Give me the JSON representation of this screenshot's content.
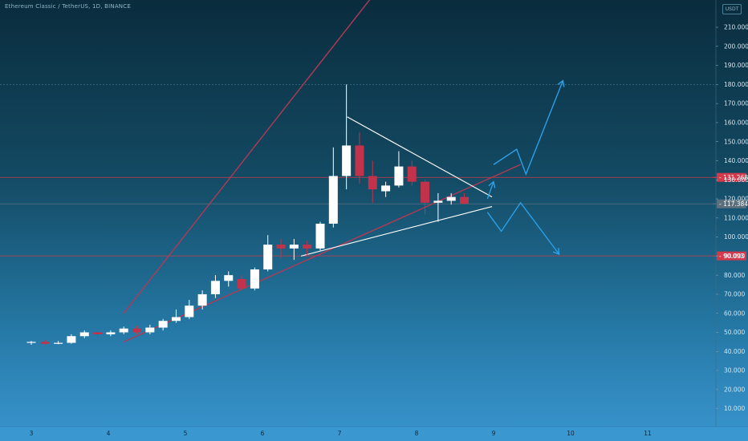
{
  "header": {
    "title": "Ethereum Classic / TetherUS, 1D, BINANCE",
    "badge": "USDT"
  },
  "chart_data": {
    "type": "candlestick",
    "y_axis": {
      "min": 0,
      "max": 220,
      "ticks": [
        10,
        20,
        30,
        40,
        50,
        60,
        70,
        80,
        90,
        100,
        110,
        120,
        130,
        140,
        150,
        160,
        170,
        180,
        190,
        200,
        210
      ],
      "tick_labels": [
        "10.000",
        "20.000",
        "30.000",
        "40.000",
        "50.000",
        "60.000",
        "70.000",
        "80.000",
        "90.000",
        "100.000",
        "110.000",
        "120.000",
        "130.000",
        "140.000",
        "150.000",
        "160.000",
        "170.000",
        "180.000",
        "190.000",
        "200.000",
        "210.000"
      ]
    },
    "x_axis": {
      "ticks": [
        3,
        4,
        5,
        6,
        7,
        8,
        9,
        10,
        11
      ],
      "tick_labels": [
        "3",
        "4",
        "5",
        "6",
        "7",
        "8",
        "9",
        "10",
        "11"
      ]
    },
    "candles": [
      {
        "x": 3.0,
        "open": 44.5,
        "high": 45.5,
        "low": 43.5,
        "close": 45.0
      },
      {
        "x": 3.18,
        "open": 45.0,
        "high": 46.0,
        "low": 43.5,
        "close": 44.0
      },
      {
        "x": 3.35,
        "open": 44.0,
        "high": 45.5,
        "low": 43.8,
        "close": 44.5
      },
      {
        "x": 3.52,
        "open": 44.5,
        "high": 49.0,
        "low": 44.0,
        "close": 48.0
      },
      {
        "x": 3.69,
        "open": 48.0,
        "high": 51.0,
        "low": 47.0,
        "close": 50.0
      },
      {
        "x": 3.86,
        "open": 50.0,
        "high": 50.5,
        "low": 47.0,
        "close": 49.0
      },
      {
        "x": 4.03,
        "open": 49.0,
        "high": 51.0,
        "low": 48.0,
        "close": 50.0
      },
      {
        "x": 4.2,
        "open": 50.0,
        "high": 53.0,
        "low": 49.0,
        "close": 52.0
      },
      {
        "x": 4.37,
        "open": 52.0,
        "high": 53.5,
        "low": 49.0,
        "close": 50.0
      },
      {
        "x": 4.54,
        "open": 50.0,
        "high": 54.0,
        "low": 49.0,
        "close": 52.5
      },
      {
        "x": 4.71,
        "open": 52.5,
        "high": 57.0,
        "low": 51.0,
        "close": 56.0
      },
      {
        "x": 4.88,
        "open": 56.0,
        "high": 62.0,
        "low": 55.0,
        "close": 58.0
      },
      {
        "x": 5.05,
        "open": 58.0,
        "high": 67.0,
        "low": 57.0,
        "close": 64.0
      },
      {
        "x": 5.22,
        "open": 64.0,
        "high": 72.0,
        "low": 62.0,
        "close": 70.0
      },
      {
        "x": 5.39,
        "open": 70.0,
        "high": 80.0,
        "low": 68.0,
        "close": 77.0
      },
      {
        "x": 5.56,
        "open": 77.0,
        "high": 82.0,
        "low": 74.0,
        "close": 80.0
      },
      {
        "x": 5.73,
        "open": 78.0,
        "high": 80.0,
        "low": 72.0,
        "close": 73.0
      },
      {
        "x": 5.9,
        "open": 73.0,
        "high": 84.0,
        "low": 72.0,
        "close": 83.0
      },
      {
        "x": 6.07,
        "open": 83.0,
        "high": 101.0,
        "low": 82.0,
        "close": 96.0
      },
      {
        "x": 6.24,
        "open": 96.0,
        "high": 99.0,
        "low": 89.0,
        "close": 94.0
      },
      {
        "x": 6.41,
        "open": 94.0,
        "high": 99.0,
        "low": 88.0,
        "close": 96.0
      },
      {
        "x": 6.58,
        "open": 96.0,
        "high": 98.0,
        "low": 90.0,
        "close": 94.0
      },
      {
        "x": 6.75,
        "open": 94.0,
        "high": 108.0,
        "low": 93.0,
        "close": 107.0
      },
      {
        "x": 6.92,
        "open": 107.0,
        "high": 147.0,
        "low": 105.0,
        "close": 132.0
      },
      {
        "x": 7.09,
        "open": 132.0,
        "high": 180.0,
        "low": 125.0,
        "close": 148.0
      },
      {
        "x": 7.26,
        "open": 148.0,
        "high": 155.0,
        "low": 128.0,
        "close": 132.0
      },
      {
        "x": 7.43,
        "open": 132.0,
        "high": 140.0,
        "low": 118.0,
        "close": 125.0
      },
      {
        "x": 7.6,
        "open": 124.0,
        "high": 129.0,
        "low": 121.0,
        "close": 127.0
      },
      {
        "x": 7.77,
        "open": 127.0,
        "high": 145.0,
        "low": 126.0,
        "close": 137.0
      },
      {
        "x": 7.94,
        "open": 137.0,
        "high": 140.0,
        "low": 127.0,
        "close": 129.0
      },
      {
        "x": 8.11,
        "open": 129.0,
        "high": 130.0,
        "low": 112.0,
        "close": 118.0
      },
      {
        "x": 8.28,
        "open": 118.0,
        "high": 123.0,
        "low": 108.0,
        "close": 119.0
      },
      {
        "x": 8.45,
        "open": 119.0,
        "high": 123.0,
        "low": 117.0,
        "close": 121.0
      },
      {
        "x": 8.62,
        "open": 121.0,
        "high": 123.0,
        "low": 117.5,
        "close": 117.4
      }
    ],
    "horizontal_levels": [
      {
        "value": 131.268,
        "label": "131.268",
        "color": "#d23a4b"
      },
      {
        "value": 117.384,
        "label": "117.384",
        "color": "#5d6f7d"
      },
      {
        "value": 90.093,
        "label": "90.093",
        "color": "#d23a4b"
      },
      {
        "value": 180,
        "label": "",
        "color": "#3d7080"
      }
    ],
    "trendlines": [
      {
        "kind": "channel-upper",
        "color": "#b03a55",
        "from": {
          "x": 4.2,
          "y": 60
        },
        "to": {
          "x": 7.5,
          "y": 230
        }
      },
      {
        "kind": "support",
        "color": "#b03a55",
        "from": {
          "x": 4.2,
          "y": 45
        },
        "to": {
          "x": 9.35,
          "y": 138
        }
      },
      {
        "kind": "triangle-top",
        "color": "#ffffff",
        "from": {
          "x": 7.1,
          "y": 163
        },
        "to": {
          "x": 8.98,
          "y": 121
        }
      },
      {
        "kind": "triangle-bottom",
        "color": "#ffffff",
        "from": {
          "x": 6.5,
          "y": 90
        },
        "to": {
          "x": 8.98,
          "y": 116
        }
      }
    ],
    "projections": [
      {
        "color": "#2c9fe8",
        "points": [
          {
            "x": 8.92,
            "y": 120
          },
          {
            "x": 9.0,
            "y": 129
          }
        ]
      },
      {
        "color": "#2c9fe8",
        "points": [
          {
            "x": 9.0,
            "y": 138
          },
          {
            "x": 9.3,
            "y": 146
          },
          {
            "x": 9.42,
            "y": 133
          },
          {
            "x": 9.9,
            "y": 182
          }
        ]
      },
      {
        "color": "#2c9fe8",
        "points": [
          {
            "x": 8.92,
            "y": 113
          },
          {
            "x": 9.1,
            "y": 103
          },
          {
            "x": 9.35,
            "y": 118
          },
          {
            "x": 9.85,
            "y": 91
          }
        ]
      }
    ],
    "colors": {
      "up": "#ffffff",
      "down": "#c2334b",
      "wick_up": "#ffffff",
      "wick_down": "#c2334b"
    }
  }
}
